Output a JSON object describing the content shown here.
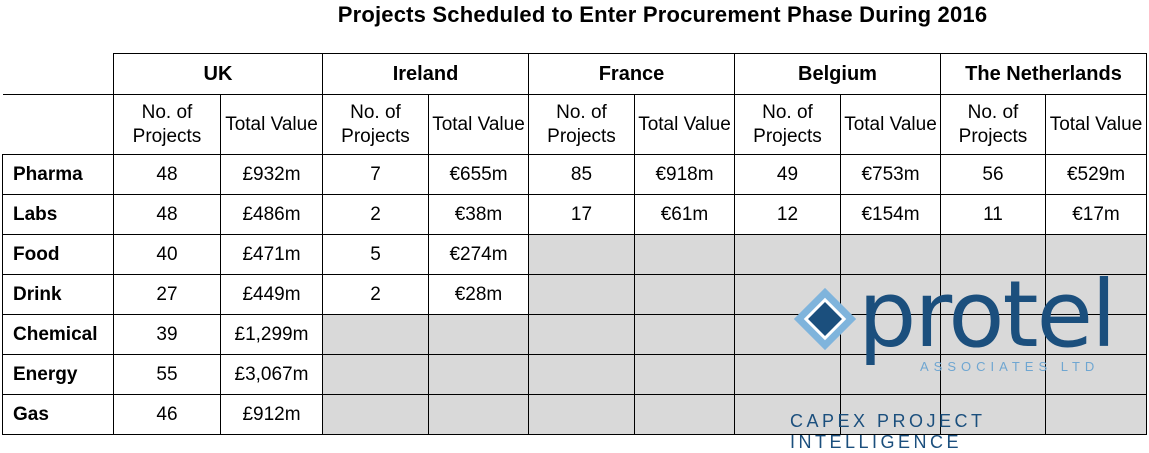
{
  "title": "Projects Scheduled to Enter Procurement Phase During 2016",
  "countries": [
    "UK",
    "Ireland",
    "France",
    "Belgium",
    "The Netherlands"
  ],
  "subheaders": {
    "projects": "No. of Projects",
    "value": "Total Value"
  },
  "rows": [
    {
      "label": "Pharma",
      "cells": [
        "48",
        "£932m",
        "7",
        "€655m",
        "85",
        "€918m",
        "49",
        "€753m",
        "56",
        "€529m"
      ]
    },
    {
      "label": "Labs",
      "cells": [
        "48",
        "£486m",
        "2",
        "€38m",
        "17",
        "€61m",
        "12",
        "€154m",
        "11",
        "€17m"
      ]
    },
    {
      "label": "Food",
      "cells": [
        "40",
        "£471m",
        "5",
        "€274m"
      ]
    },
    {
      "label": "Drink",
      "cells": [
        "27",
        "£449m",
        "2",
        "€28m"
      ]
    },
    {
      "label": "Chemical",
      "cells": [
        "39",
        "£1,299m"
      ]
    },
    {
      "label": "Energy",
      "cells": [
        "55",
        "£3,067m"
      ]
    },
    {
      "label": "Gas",
      "cells": [
        "46",
        "£912m"
      ]
    }
  ],
  "logo": {
    "brand": "protel",
    "associates": "ASSOCIATES LTD",
    "tagline": "CAPEX PROJECT INTELLIGENCE",
    "colors": {
      "dark": "#1b4f7d",
      "light": "#7fb4dc"
    }
  }
}
